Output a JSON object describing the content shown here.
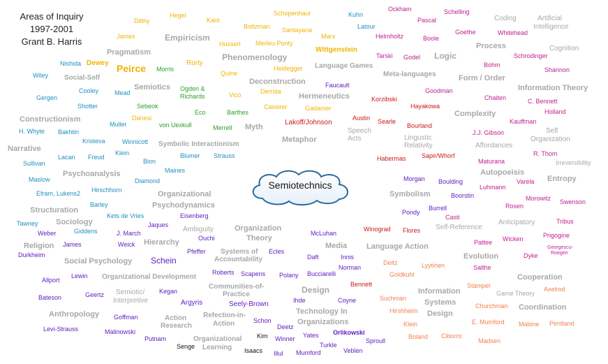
{
  "title_lines": [
    "Areas of Inquiry",
    "1997-2001",
    "Grant B. Harris"
  ],
  "center": {
    "label": "Semiotechnics"
  },
  "colors": {
    "major": "#a8a8a8",
    "yellow": "#f0b400",
    "teal": "#1f8fbf",
    "green": "#2aa02a",
    "magenta": "#c0208f",
    "red": "#cc1818",
    "purple": "#6020c0",
    "salmon": "#f08050",
    "black": "#111111"
  },
  "terms": [
    {
      "t": "Dilthy",
      "c": "yellow"
    },
    {
      "t": "Hegel",
      "c": "yellow"
    },
    {
      "t": "Kant",
      "c": "yellow"
    },
    {
      "t": "Schopenhaur",
      "c": "yellow"
    },
    {
      "t": "Kuhn",
      "c": "teal"
    },
    {
      "t": "Ockham",
      "c": "magenta"
    },
    {
      "t": "Schelling",
      "c": "magenta"
    },
    {
      "t": "Coding",
      "c": "major"
    },
    {
      "t": "Artificial",
      "c": "major"
    },
    {
      "t": "Intelligence",
      "c": "major"
    },
    {
      "t": "Pascal",
      "c": "magenta"
    },
    {
      "t": "James",
      "c": "yellow"
    },
    {
      "t": "Empiricism",
      "c": "major"
    },
    {
      "t": "Boltzman",
      "c": "yellow"
    },
    {
      "t": "Santayana",
      "c": "yellow"
    },
    {
      "t": "Latour",
      "c": "teal"
    },
    {
      "t": "Helmholtz",
      "c": "magenta"
    },
    {
      "t": "Boole",
      "c": "magenta"
    },
    {
      "t": "Goethe",
      "c": "magenta"
    },
    {
      "t": "Whitehead",
      "c": "magenta"
    },
    {
      "t": "Husserl",
      "c": "yellow"
    },
    {
      "t": "Merleu-Ponty",
      "c": "yellow"
    },
    {
      "t": "Marx",
      "c": "yellow"
    },
    {
      "t": "Process",
      "c": "major"
    },
    {
      "t": "Cognition",
      "c": "major"
    },
    {
      "t": "Pragmatism",
      "c": "major"
    },
    {
      "t": "Wittgenstein",
      "c": "yellow"
    },
    {
      "t": "Phenomenology",
      "c": "major"
    },
    {
      "t": "Tarski",
      "c": "magenta"
    },
    {
      "t": "Godel",
      "c": "magenta"
    },
    {
      "t": "Logic",
      "c": "major"
    },
    {
      "t": "Schrodinger",
      "c": "magenta"
    },
    {
      "t": "Nishida",
      "c": "teal"
    },
    {
      "t": "Dewey",
      "c": "yellow"
    },
    {
      "t": "Rorty",
      "c": "yellow"
    },
    {
      "t": "Bohm",
      "c": "magenta"
    },
    {
      "t": "Peirce",
      "c": "yellow"
    },
    {
      "t": "Morris",
      "c": "green"
    },
    {
      "t": "Heidegger",
      "c": "yellow"
    },
    {
      "t": "Language Games",
      "c": "major"
    },
    {
      "t": "Shannon",
      "c": "magenta"
    },
    {
      "t": "Wiley",
      "c": "teal"
    },
    {
      "t": "Social-Self",
      "c": "major"
    },
    {
      "t": "Quine",
      "c": "yellow"
    },
    {
      "t": "Meta-languages",
      "c": "major"
    },
    {
      "t": "Form / Order",
      "c": "major"
    },
    {
      "t": "Deconstruction",
      "c": "major"
    },
    {
      "t": "Faucault",
      "c": "purple"
    },
    {
      "t": "Semiotics",
      "c": "major"
    },
    {
      "t": "Information Theory",
      "c": "major"
    },
    {
      "t": "Cooley",
      "c": "teal"
    },
    {
      "t": "Mead",
      "c": "teal"
    },
    {
      "t": "Ogden &",
      "c": "green"
    },
    {
      "t": "Richards",
      "c": "green"
    },
    {
      "t": "Vico",
      "c": "yellow"
    },
    {
      "t": "Derrida",
      "c": "yellow"
    },
    {
      "t": "Hermeneutics",
      "c": "major"
    },
    {
      "t": "Goodman",
      "c": "magenta"
    },
    {
      "t": "Gergen",
      "c": "teal"
    },
    {
      "t": "Korzibski",
      "c": "red"
    },
    {
      "t": "Chaiten",
      "c": "magenta"
    },
    {
      "t": "C. Bennett",
      "c": "magenta"
    },
    {
      "t": "Shotter",
      "c": "teal"
    },
    {
      "t": "Sebeok",
      "c": "green"
    },
    {
      "t": "Cassirer",
      "c": "yellow"
    },
    {
      "t": "Gadamer",
      "c": "yellow"
    },
    {
      "t": "Hayakowa",
      "c": "red"
    },
    {
      "t": "Eco",
      "c": "green"
    },
    {
      "t": "Barthes",
      "c": "green"
    },
    {
      "t": "Complexity",
      "c": "major"
    },
    {
      "t": "Holland",
      "c": "magenta"
    },
    {
      "t": "Constructionism",
      "c": "major"
    },
    {
      "t": "Danesi",
      "c": "yellow"
    },
    {
      "t": "Austin",
      "c": "red"
    },
    {
      "t": "Searle",
      "c": "red"
    },
    {
      "t": "Kauffman",
      "c": "magenta"
    },
    {
      "t": "Muller",
      "c": "teal"
    },
    {
      "t": "von Uexkull",
      "c": "green"
    },
    {
      "t": "Merrell",
      "c": "green"
    },
    {
      "t": "Myth",
      "c": "major"
    },
    {
      "t": "Lakoff/Johnson",
      "c": "red"
    },
    {
      "t": "Bourland",
      "c": "red"
    },
    {
      "t": "Self",
      "c": "major"
    },
    {
      "t": "H. Whyte",
      "c": "teal"
    },
    {
      "t": "Bakhtin",
      "c": "teal"
    },
    {
      "t": "Speech",
      "c": "major"
    },
    {
      "t": "Acts",
      "c": "major"
    },
    {
      "t": "J.J. Gibson",
      "c": "magenta"
    },
    {
      "t": "Organization",
      "c": "major"
    },
    {
      "t": "Lingustic",
      "c": "major"
    },
    {
      "t": "Relativity",
      "c": "major"
    },
    {
      "t": "Kristeva",
      "c": "teal"
    },
    {
      "t": "Winnicott",
      "c": "teal"
    },
    {
      "t": "Metaphor",
      "c": "major"
    },
    {
      "t": "Affordances",
      "c": "major"
    },
    {
      "t": "Narrative",
      "c": "major"
    },
    {
      "t": "Symbolic Interactionism",
      "c": "major"
    },
    {
      "t": "R. Thom",
      "c": "magenta"
    },
    {
      "t": "Lacan",
      "c": "teal"
    },
    {
      "t": "Freud",
      "c": "teal"
    },
    {
      "t": "Klein",
      "c": "teal"
    },
    {
      "t": "Blumer",
      "c": "teal"
    },
    {
      "t": "Strauss",
      "c": "teal"
    },
    {
      "t": "Sapir/Whorf",
      "c": "red"
    },
    {
      "t": "Sullivan",
      "c": "teal"
    },
    {
      "t": "Bion",
      "c": "teal"
    },
    {
      "t": "Habermas",
      "c": "red"
    },
    {
      "t": "Maturana",
      "c": "magenta"
    },
    {
      "t": "Irreversibility",
      "c": "major"
    },
    {
      "t": "Maines",
      "c": "teal"
    },
    {
      "t": "Autopoeisis",
      "c": "major"
    },
    {
      "t": "Psychoanalysis",
      "c": "major"
    },
    {
      "t": "Morgan",
      "c": "purple"
    },
    {
      "t": "Maslow",
      "c": "teal"
    },
    {
      "t": "Diamond",
      "c": "teal"
    },
    {
      "t": "Boulding",
      "c": "purple"
    },
    {
      "t": "Varela",
      "c": "magenta"
    },
    {
      "t": "Entropy",
      "c": "major"
    },
    {
      "t": "Hirschhorn",
      "c": "teal"
    },
    {
      "t": "Luhmann",
      "c": "magenta"
    },
    {
      "t": "Efram, Lukens2",
      "c": "teal"
    },
    {
      "t": "Organizational",
      "c": "major"
    },
    {
      "t": "Symbolism",
      "c": "major"
    },
    {
      "t": "Boorstin",
      "c": "purple"
    },
    {
      "t": "Morowitz",
      "c": "magenta"
    },
    {
      "t": "Barley",
      "c": "teal"
    },
    {
      "t": "Psychodynamics",
      "c": "major"
    },
    {
      "t": "Swenson",
      "c": "magenta"
    },
    {
      "t": "Structuration",
      "c": "major"
    },
    {
      "t": "Burrell",
      "c": "purple"
    },
    {
      "t": "Rosen",
      "c": "magenta"
    },
    {
      "t": "Kets de Vries",
      "c": "teal"
    },
    {
      "t": "Eisenberg",
      "c": "purple"
    },
    {
      "t": "Pondy",
      "c": "purple"
    },
    {
      "t": "Casti",
      "c": "magenta"
    },
    {
      "t": "Tawney",
      "c": "teal"
    },
    {
      "t": "Sociology",
      "c": "major"
    },
    {
      "t": "Jaques",
      "c": "purple"
    },
    {
      "t": "Organization",
      "c": "major"
    },
    {
      "t": "Anticipatory",
      "c": "major"
    },
    {
      "t": "Tribus",
      "c": "magenta"
    },
    {
      "t": "Self-Reference",
      "c": "major"
    },
    {
      "t": "Giddens",
      "c": "teal"
    },
    {
      "t": "Ambiguity",
      "c": "major"
    },
    {
      "t": "Winograd",
      "c": "red"
    },
    {
      "t": "Flores",
      "c": "red"
    },
    {
      "t": "Weber",
      "c": "purple"
    },
    {
      "t": "J. March",
      "c": "purple"
    },
    {
      "t": "Theory",
      "c": "major"
    },
    {
      "t": "McLuhan",
      "c": "purple"
    },
    {
      "t": "Prigogine",
      "c": "magenta"
    },
    {
      "t": "Ouchi",
      "c": "purple"
    },
    {
      "t": "Pattee",
      "c": "magenta"
    },
    {
      "t": "Wicken",
      "c": "magenta"
    },
    {
      "t": "Religion",
      "c": "major"
    },
    {
      "t": "James",
      "c": "purple"
    },
    {
      "t": "Weick",
      "c": "purple"
    },
    {
      "t": "Hierarchy",
      "c": "major"
    },
    {
      "t": "Media",
      "c": "major"
    },
    {
      "t": "Language Action",
      "c": "major"
    },
    {
      "t": "Georgescu-",
      "c": "magenta"
    },
    {
      "t": "Roegen",
      "c": "magenta"
    },
    {
      "t": "Pfeffer",
      "c": "purple"
    },
    {
      "t": "Systems of",
      "c": "major"
    },
    {
      "t": "Durkheim",
      "c": "purple"
    },
    {
      "t": "Accountability",
      "c": "major"
    },
    {
      "t": "Ecles",
      "c": "purple"
    },
    {
      "t": "Dyke",
      "c": "magenta"
    },
    {
      "t": "Schein",
      "c": "purple"
    },
    {
      "t": "Daft",
      "c": "purple"
    },
    {
      "t": "Innis",
      "c": "purple"
    },
    {
      "t": "Evolution",
      "c": "major"
    },
    {
      "t": "Social Psychology",
      "c": "major"
    },
    {
      "t": "Deitz",
      "c": "salmon"
    },
    {
      "t": "Lyytinen",
      "c": "salmon"
    },
    {
      "t": "Salthe",
      "c": "magenta"
    },
    {
      "t": "Norman",
      "c": "purple"
    },
    {
      "t": "Roberts",
      "c": "purple"
    },
    {
      "t": "Scapens",
      "c": "purple"
    },
    {
      "t": "Polany",
      "c": "purple"
    },
    {
      "t": "Bucciarelli",
      "c": "purple"
    },
    {
      "t": "Goldkuhl",
      "c": "salmon"
    },
    {
      "t": "Cooperation",
      "c": "major"
    },
    {
      "t": "Allport",
      "c": "purple"
    },
    {
      "t": "Lewin",
      "c": "purple"
    },
    {
      "t": "Organizational Development",
      "c": "major"
    },
    {
      "t": "Bennett",
      "c": "red"
    },
    {
      "t": "Stamper",
      "c": "salmon"
    },
    {
      "t": "Axelrod",
      "c": "salmon"
    },
    {
      "t": "Communities-of-",
      "c": "major"
    },
    {
      "t": "Practice",
      "c": "major"
    },
    {
      "t": "Design",
      "c": "major"
    },
    {
      "t": "Information",
      "c": "major"
    },
    {
      "t": "Game Theory",
      "c": "major"
    },
    {
      "t": "Semiotic/",
      "c": "major"
    },
    {
      "t": "Interpretive",
      "c": "major"
    },
    {
      "t": "Geertz",
      "c": "purple"
    },
    {
      "t": "Kegan",
      "c": "purple"
    },
    {
      "t": "Bateson",
      "c": "purple"
    },
    {
      "t": "Suchman",
      "c": "salmon"
    },
    {
      "t": "Systems",
      "c": "major"
    },
    {
      "t": "Argyris",
      "c": "purple"
    },
    {
      "t": "Seely-Brown",
      "c": "purple"
    },
    {
      "t": "Ihde",
      "c": "purple"
    },
    {
      "t": "Coyne",
      "c": "purple"
    },
    {
      "t": "Churchman",
      "c": "salmon"
    },
    {
      "t": "Coordination",
      "c": "major"
    },
    {
      "t": "Design",
      "c": "major"
    },
    {
      "t": "Hirshheim",
      "c": "salmon"
    },
    {
      "t": "Anthropology",
      "c": "major"
    },
    {
      "t": "Technology In",
      "c": "major"
    },
    {
      "t": "Goffman",
      "c": "purple"
    },
    {
      "t": "Action",
      "c": "major"
    },
    {
      "t": "Refection-in-",
      "c": "major"
    },
    {
      "t": "Organizations",
      "c": "major"
    },
    {
      "t": "Schon",
      "c": "purple"
    },
    {
      "t": "E. Mumford",
      "c": "salmon"
    },
    {
      "t": "Malone",
      "c": "salmon"
    },
    {
      "t": "Pentland",
      "c": "salmon"
    },
    {
      "t": "Research",
      "c": "major"
    },
    {
      "t": "Action",
      "c": "major"
    },
    {
      "t": "Klein",
      "c": "salmon"
    },
    {
      "t": "Deetz",
      "c": "purple"
    },
    {
      "t": "Levi-Strauss",
      "c": "purple"
    },
    {
      "t": "Malinowski",
      "c": "purple"
    },
    {
      "t": "Orlikowski",
      "c": "purple"
    },
    {
      "t": "Yates",
      "c": "purple"
    },
    {
      "t": "Ciborro",
      "c": "salmon"
    },
    {
      "t": "Kim",
      "c": "black"
    },
    {
      "t": "Putnam",
      "c": "purple"
    },
    {
      "t": "Organizational",
      "c": "major"
    },
    {
      "t": "Winner",
      "c": "purple"
    },
    {
      "t": "Boland",
      "c": "salmon"
    },
    {
      "t": "Sproull",
      "c": "purple"
    },
    {
      "t": "Madsen",
      "c": "salmon"
    },
    {
      "t": "Senge",
      "c": "black"
    },
    {
      "t": "Learning",
      "c": "major"
    },
    {
      "t": "Turkle",
      "c": "purple"
    },
    {
      "t": "Isaacs",
      "c": "black"
    },
    {
      "t": "Illul",
      "c": "purple"
    },
    {
      "t": "Mumford",
      "c": "purple"
    },
    {
      "t": "Veblen",
      "c": "purple"
    }
  ]
}
